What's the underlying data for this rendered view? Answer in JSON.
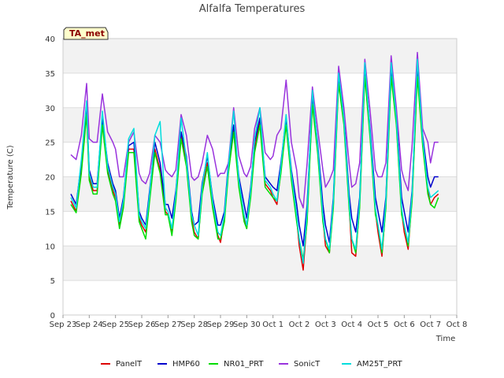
{
  "chart_data": {
    "type": "line",
    "title": "Alfalfa Temperatures",
    "xlabel": "Time",
    "ylabel": "Temperature (C)",
    "badge": "TA_met",
    "ylim": [
      0,
      40
    ],
    "yticks": [
      0,
      5,
      10,
      15,
      20,
      25,
      30,
      35,
      40
    ],
    "xlim": [
      0,
      15
    ],
    "xticks": [
      {
        "pos": 0,
        "label": "Sep 23"
      },
      {
        "pos": 1,
        "label": "Sep 24"
      },
      {
        "pos": 2,
        "label": "Sep 25"
      },
      {
        "pos": 3,
        "label": "Sep 26"
      },
      {
        "pos": 4,
        "label": "Sep 27"
      },
      {
        "pos": 5,
        "label": "Sep 28"
      },
      {
        "pos": 6,
        "label": "Sep 29"
      },
      {
        "pos": 7,
        "label": "Sep 30"
      },
      {
        "pos": 8,
        "label": "Oct 1"
      },
      {
        "pos": 9,
        "label": "Oct 2"
      },
      {
        "pos": 10,
        "label": "Oct 3"
      },
      {
        "pos": 11,
        "label": "Oct 4"
      },
      {
        "pos": 12,
        "label": "Oct 5"
      },
      {
        "pos": 13,
        "label": "Oct 6"
      },
      {
        "pos": 14,
        "label": "Oct 7"
      },
      {
        "pos": 15,
        "label": "Oct 8"
      }
    ],
    "grid": true,
    "legend_position": "bottom",
    "series": [
      {
        "name": "PanelT",
        "color": "#dd0000",
        "x": [
          0.3,
          0.5,
          0.7,
          0.9,
          1.0,
          1.15,
          1.3,
          1.5,
          1.7,
          1.9,
          2.0,
          2.15,
          2.3,
          2.5,
          2.7,
          2.9,
          3.0,
          3.15,
          3.3,
          3.5,
          3.7,
          3.9,
          4.0,
          4.15,
          4.3,
          4.5,
          4.7,
          4.9,
          5.0,
          5.15,
          5.3,
          5.5,
          5.7,
          5.9,
          6.0,
          6.15,
          6.3,
          6.5,
          6.7,
          6.9,
          7.0,
          7.15,
          7.3,
          7.5,
          7.7,
          7.9,
          8.0,
          8.15,
          8.3,
          8.5,
          8.7,
          8.9,
          9.0,
          9.15,
          9.3,
          9.5,
          9.7,
          9.9,
          10.0,
          10.15,
          10.3,
          10.5,
          10.7,
          10.9,
          11.0,
          11.15,
          11.3,
          11.5,
          11.7,
          11.9,
          12.0,
          12.15,
          12.3,
          12.5,
          12.7,
          12.9,
          13.0,
          13.15,
          13.3,
          13.5,
          13.7,
          13.9,
          14.0,
          14.15,
          14.3
        ],
        "y": [
          16.5,
          15.0,
          21.0,
          29.5,
          20.0,
          18.0,
          18.0,
          28.0,
          21.0,
          18.0,
          17.0,
          13.0,
          16.0,
          24.0,
          24.0,
          14.0,
          13.0,
          12.0,
          17.0,
          24.0,
          21.0,
          15.0,
          14.5,
          12.0,
          17.0,
          26.0,
          22.0,
          14.0,
          12.0,
          11.0,
          18.0,
          22.0,
          16.0,
          11.5,
          10.5,
          14.0,
          21.0,
          27.0,
          19.0,
          14.0,
          12.5,
          17.5,
          24.0,
          28.0,
          19.0,
          18.0,
          17.0,
          16.0,
          21.0,
          28.0,
          20.0,
          14.0,
          10.0,
          6.5,
          14.0,
          31.0,
          24.0,
          14.0,
          10.0,
          9.0,
          16.0,
          34.0,
          28.0,
          16.0,
          9.0,
          8.5,
          16.0,
          35.0,
          26.0,
          15.0,
          12.0,
          8.5,
          16.0,
          35.0,
          28.0,
          15.0,
          12.0,
          9.5,
          17.0,
          35.0,
          25.0,
          18.0,
          16.0,
          17.0,
          17.5
        ]
      },
      {
        "name": "HMP60",
        "color": "#0000cc",
        "x": [
          0.3,
          0.5,
          0.7,
          0.9,
          1.0,
          1.15,
          1.3,
          1.5,
          1.7,
          1.9,
          2.0,
          2.15,
          2.3,
          2.5,
          2.7,
          2.9,
          3.0,
          3.15,
          3.3,
          3.5,
          3.7,
          3.9,
          4.0,
          4.15,
          4.3,
          4.5,
          4.7,
          4.9,
          5.0,
          5.15,
          5.3,
          5.5,
          5.7,
          5.9,
          6.0,
          6.15,
          6.3,
          6.5,
          6.7,
          6.9,
          7.0,
          7.15,
          7.3,
          7.5,
          7.7,
          7.9,
          8.0,
          8.15,
          8.3,
          8.5,
          8.7,
          8.9,
          9.0,
          9.15,
          9.3,
          9.5,
          9.7,
          9.9,
          10.0,
          10.15,
          10.3,
          10.5,
          10.7,
          10.9,
          11.0,
          11.15,
          11.3,
          11.5,
          11.7,
          11.9,
          12.0,
          12.15,
          12.3,
          12.5,
          12.7,
          12.9,
          13.0,
          13.15,
          13.3,
          13.5,
          13.7,
          13.9,
          14.0,
          14.15,
          14.3
        ],
        "y": [
          17.5,
          16.0,
          22.0,
          30.0,
          21.0,
          19.0,
          19.0,
          28.5,
          22.0,
          19.0,
          18.0,
          14.0,
          17.0,
          24.5,
          25.0,
          15.0,
          14.0,
          13.0,
          18.0,
          25.0,
          22.0,
          16.0,
          16.0,
          14.0,
          18.0,
          26.5,
          23.0,
          15.0,
          13.0,
          13.5,
          19.0,
          23.0,
          17.0,
          13.0,
          13.0,
          15.0,
          22.0,
          27.5,
          20.0,
          16.0,
          14.0,
          18.5,
          25.0,
          28.5,
          20.0,
          19.0,
          18.5,
          18.0,
          22.0,
          28.5,
          21.0,
          16.0,
          13.0,
          10.0,
          16.0,
          31.5,
          25.0,
          16.0,
          13.0,
          10.5,
          17.0,
          34.5,
          29.0,
          17.5,
          14.0,
          12.0,
          17.0,
          35.5,
          27.0,
          17.0,
          15.0,
          12.0,
          17.0,
          35.5,
          29.0,
          17.0,
          15.0,
          12.0,
          18.0,
          35.5,
          26.0,
          20.0,
          18.5,
          20.0,
          20.0
        ]
      },
      {
        "name": "NR01_PRT",
        "color": "#00dd00",
        "x": [
          0.3,
          0.5,
          0.7,
          0.9,
          1.0,
          1.15,
          1.3,
          1.5,
          1.7,
          1.9,
          2.0,
          2.15,
          2.3,
          2.5,
          2.7,
          2.9,
          3.0,
          3.15,
          3.3,
          3.5,
          3.7,
          3.9,
          4.0,
          4.15,
          4.3,
          4.5,
          4.7,
          4.9,
          5.0,
          5.15,
          5.3,
          5.5,
          5.7,
          5.9,
          6.0,
          6.15,
          6.3,
          6.5,
          6.7,
          6.9,
          7.0,
          7.15,
          7.3,
          7.5,
          7.7,
          7.9,
          8.0,
          8.15,
          8.3,
          8.5,
          8.7,
          8.9,
          9.0,
          9.15,
          9.3,
          9.5,
          9.7,
          9.9,
          10.0,
          10.15,
          10.3,
          10.5,
          10.7,
          10.9,
          11.0,
          11.15,
          11.3,
          11.5,
          11.7,
          11.9,
          12.0,
          12.15,
          12.3,
          12.5,
          12.7,
          12.9,
          13.0,
          13.15,
          13.3,
          13.5,
          13.7,
          13.9,
          14.0,
          14.15,
          14.3
        ],
        "y": [
          16.0,
          14.8,
          20.5,
          29.0,
          19.5,
          17.5,
          17.5,
          27.5,
          20.5,
          17.5,
          16.5,
          12.5,
          15.5,
          23.5,
          23.5,
          13.5,
          12.5,
          11.0,
          16.5,
          23.5,
          20.5,
          14.5,
          14.5,
          11.5,
          16.5,
          25.5,
          21.5,
          13.5,
          11.5,
          11.0,
          17.5,
          21.5,
          15.5,
          11.0,
          11.0,
          13.5,
          20.5,
          26.5,
          18.5,
          13.5,
          12.5,
          17.0,
          23.5,
          27.5,
          18.5,
          17.5,
          17.0,
          16.5,
          20.5,
          27.5,
          19.5,
          13.5,
          11.0,
          8.0,
          13.5,
          30.5,
          23.5,
          13.5,
          11.0,
          9.0,
          15.5,
          33.5,
          27.5,
          15.5,
          11.0,
          9.0,
          15.5,
          34.5,
          25.5,
          14.5,
          13.0,
          9.0,
          15.5,
          34.5,
          27.5,
          14.5,
          13.0,
          10.0,
          16.5,
          34.5,
          24.5,
          17.5,
          16.0,
          15.5,
          17.0
        ]
      },
      {
        "name": "SonicT",
        "color": "#9933dd",
        "x": [
          0.3,
          0.5,
          0.7,
          0.9,
          1.0,
          1.15,
          1.3,
          1.5,
          1.7,
          1.9,
          2.0,
          2.15,
          2.3,
          2.5,
          2.7,
          2.9,
          3.0,
          3.15,
          3.3,
          3.5,
          3.7,
          3.9,
          4.0,
          4.15,
          4.3,
          4.5,
          4.7,
          4.9,
          5.0,
          5.15,
          5.3,
          5.5,
          5.7,
          5.9,
          6.0,
          6.15,
          6.3,
          6.5,
          6.7,
          6.9,
          7.0,
          7.15,
          7.3,
          7.5,
          7.7,
          7.9,
          8.0,
          8.15,
          8.3,
          8.5,
          8.7,
          8.9,
          9.0,
          9.15,
          9.3,
          9.5,
          9.7,
          9.9,
          10.0,
          10.15,
          10.3,
          10.5,
          10.7,
          10.9,
          11.0,
          11.15,
          11.3,
          11.5,
          11.7,
          11.9,
          12.0,
          12.15,
          12.3,
          12.5,
          12.7,
          12.9,
          13.0,
          13.15,
          13.3,
          13.5,
          13.7,
          13.9,
          14.0,
          14.15,
          14.3
        ],
        "y": [
          23.2,
          22.5,
          26.0,
          33.5,
          25.5,
          25.0,
          25.0,
          32.0,
          26.5,
          25.0,
          24.0,
          20.0,
          20.0,
          25.0,
          26.5,
          20.5,
          19.5,
          19.0,
          20.5,
          26.0,
          25.0,
          21.0,
          20.5,
          20.0,
          21.0,
          29.0,
          26.0,
          20.0,
          19.5,
          20.0,
          22.0,
          26.0,
          24.0,
          20.0,
          20.5,
          20.5,
          22.0,
          30.0,
          23.0,
          20.5,
          20.0,
          21.5,
          27.0,
          30.0,
          23.5,
          22.5,
          23.0,
          26.0,
          27.0,
          34.0,
          25.0,
          21.0,
          17.0,
          15.5,
          22.0,
          33.0,
          27.0,
          21.0,
          18.5,
          19.5,
          21.0,
          36.0,
          30.0,
          22.0,
          18.5,
          19.0,
          22.0,
          37.0,
          29.5,
          21.0,
          20.0,
          20.0,
          22.0,
          37.5,
          30.0,
          21.0,
          19.5,
          18.0,
          24.5,
          38.0,
          27.0,
          25.0,
          22.0,
          25.0,
          25.0
        ]
      },
      {
        "name": "AM25T_PRT",
        "color": "#00dddd",
        "x": [
          0.3,
          0.5,
          0.7,
          0.9,
          1.0,
          1.15,
          1.3,
          1.5,
          1.7,
          1.9,
          2.0,
          2.15,
          2.3,
          2.5,
          2.7,
          2.9,
          3.0,
          3.15,
          3.3,
          3.5,
          3.7,
          3.9,
          4.0,
          4.15,
          4.3,
          4.5,
          4.7,
          4.9,
          5.0,
          5.15,
          5.3,
          5.5,
          5.7,
          5.9,
          6.0,
          6.15,
          6.3,
          6.5,
          6.7,
          6.9,
          7.0,
          7.15,
          7.3,
          7.5,
          7.7,
          7.9,
          8.0,
          8.15,
          8.3,
          8.5,
          8.7,
          8.9,
          9.0,
          9.15,
          9.3,
          9.5,
          9.7,
          9.9,
          10.0,
          10.15,
          10.3,
          10.5,
          10.7,
          10.9,
          11.0,
          11.15,
          11.3,
          11.5,
          11.7,
          11.9,
          12.0,
          12.15,
          12.3,
          12.5,
          12.7,
          12.9,
          13.0,
          13.15,
          13.3,
          13.5,
          13.7,
          13.9,
          14.0,
          14.15,
          14.3
        ],
        "y": [
          17.0,
          15.5,
          22.5,
          31.0,
          20.5,
          18.5,
          18.5,
          29.5,
          21.5,
          18.5,
          17.5,
          13.5,
          16.5,
          25.5,
          27.0,
          14.5,
          13.5,
          12.5,
          17.5,
          26.0,
          28.0,
          15.5,
          15.0,
          12.5,
          17.5,
          28.5,
          22.5,
          14.5,
          13.0,
          11.5,
          18.5,
          23.5,
          16.5,
          12.0,
          11.5,
          14.5,
          21.5,
          29.5,
          19.5,
          14.5,
          13.0,
          18.0,
          25.5,
          30.0,
          19.5,
          18.5,
          17.5,
          16.5,
          21.5,
          29.0,
          20.5,
          14.5,
          11.0,
          7.5,
          15.0,
          32.5,
          24.5,
          14.5,
          11.0,
          9.5,
          16.5,
          35.0,
          28.5,
          16.5,
          11.0,
          9.5,
          16.5,
          36.5,
          26.5,
          15.5,
          13.0,
          9.5,
          16.5,
          36.5,
          28.5,
          15.5,
          13.0,
          10.5,
          17.5,
          37.0,
          25.5,
          18.5,
          17.0,
          17.5,
          18.0
        ]
      }
    ]
  }
}
